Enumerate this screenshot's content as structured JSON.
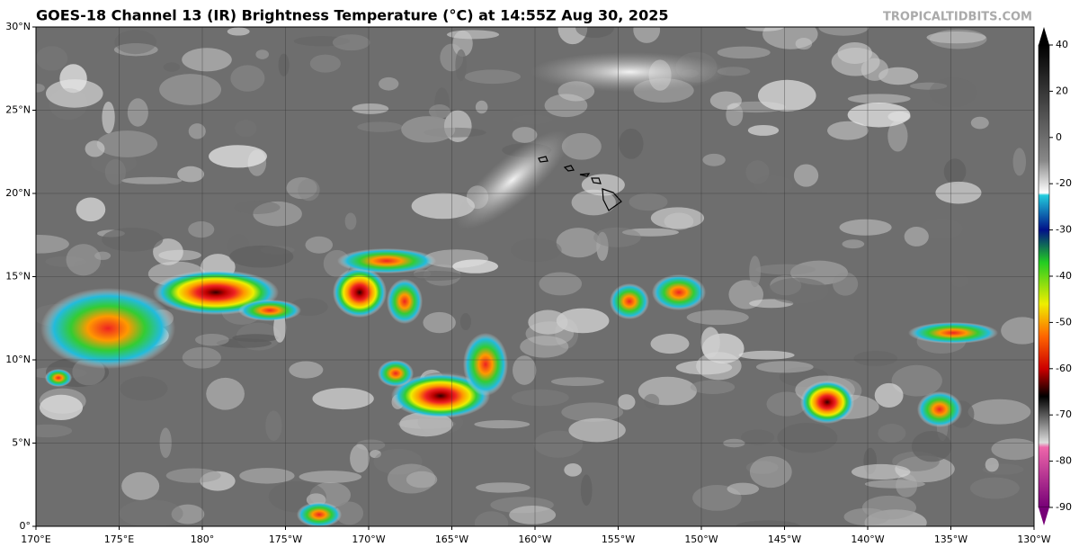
{
  "header": {
    "title": "GOES-18 Channel 13 (IR) Brightness Temperature (°C) at 14:55Z Aug 30, 2025",
    "credit": "TROPICALTIDBITS.COM"
  },
  "map": {
    "lat_labels": [
      "0°",
      "5°N",
      "10°N",
      "15°N",
      "20°N",
      "25°N",
      "30°N"
    ],
    "lon_labels": [
      "170°E",
      "175°E",
      "180°",
      "175°W",
      "170°W",
      "165°W",
      "160°W",
      "155°W",
      "150°W",
      "145°W",
      "140°W",
      "135°W",
      "130°W"
    ]
  },
  "colorbar": {
    "ticks": [
      40,
      20,
      0,
      -20,
      -30,
      -40,
      -50,
      -60,
      -70,
      -80,
      -90
    ]
  }
}
